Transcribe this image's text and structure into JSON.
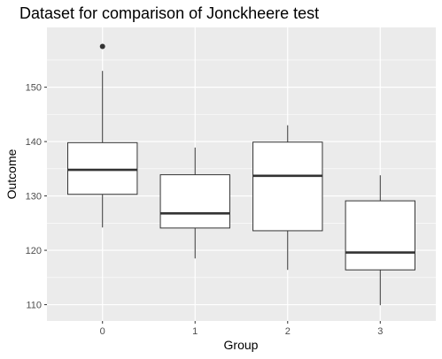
{
  "chart_data": {
    "type": "boxplot",
    "title": "Dataset for comparison of Jonckheere test",
    "xlabel": "Group",
    "ylabel": "Outcome",
    "categories": [
      "0",
      "1",
      "2",
      "3"
    ],
    "ylim": [
      107,
      161
    ],
    "yticks": [
      110,
      120,
      130,
      140,
      150
    ],
    "grid": true,
    "legend": "none",
    "boxes": [
      {
        "group": "0",
        "whisker_low": 124.2,
        "q1": 130.3,
        "median": 134.8,
        "q3": 139.8,
        "whisker_high": 153.0,
        "outliers": [
          157.5
        ]
      },
      {
        "group": "1",
        "whisker_low": 118.5,
        "q1": 124.1,
        "median": 126.8,
        "q3": 133.9,
        "whisker_high": 138.9,
        "outliers": []
      },
      {
        "group": "2",
        "whisker_low": 116.4,
        "q1": 123.6,
        "median": 133.7,
        "q3": 139.9,
        "whisker_high": 143.0,
        "outliers": []
      },
      {
        "group": "3",
        "whisker_low": 109.9,
        "q1": 116.4,
        "median": 119.6,
        "q3": 129.1,
        "whisker_high": 133.8,
        "outliers": []
      }
    ],
    "colors": {
      "panel_background": "#EBEBEB",
      "grid_line": "#FFFFFF",
      "box_fill": "#FFFFFF",
      "box_stroke": "#333333",
      "tick_label": "#4D4D4D"
    }
  }
}
